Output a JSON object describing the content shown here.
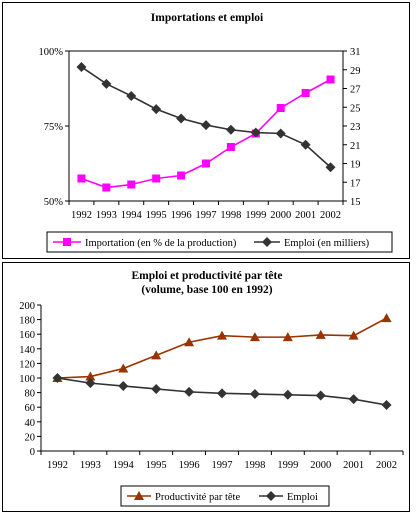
{
  "chart_data": [
    {
      "type": "line",
      "title": "Importations et emploi",
      "categories": [
        "1992",
        "1993",
        "1994",
        "1995",
        "1996",
        "1997",
        "1998",
        "1999",
        "2000",
        "2001",
        "2002"
      ],
      "y_left": {
        "ticks": [
          "50%",
          "75%",
          "100%"
        ],
        "range": [
          50,
          100
        ],
        "unit": "%"
      },
      "y_right": {
        "ticks": [
          "15",
          "17",
          "19",
          "21",
          "23",
          "25",
          "27",
          "29",
          "31"
        ],
        "range": [
          15,
          31
        ]
      },
      "series": [
        {
          "name": "Importation (en % de la  production)",
          "axis": "left",
          "color": "#ff00ff",
          "marker": "square",
          "values": [
            57.5,
            54.5,
            55.5,
            57.5,
            58.5,
            62.5,
            68,
            72.5,
            81,
            86,
            90.5
          ]
        },
        {
          "name": "Emploi (en milliers)",
          "axis": "right",
          "color": "#333333",
          "marker": "diamond",
          "values": [
            29.3,
            27.5,
            26.2,
            24.8,
            23.8,
            23.1,
            22.6,
            22.3,
            22.2,
            21.0,
            18.6
          ]
        }
      ],
      "legend": "bottom"
    },
    {
      "type": "line",
      "title": "Emploi et productivité par tête",
      "subtitle": "(volume, base 100 en 1992)",
      "categories": [
        "1992",
        "1993",
        "1994",
        "1995",
        "1996",
        "1997",
        "1998",
        "1999",
        "2000",
        "2001",
        "2002"
      ],
      "y": {
        "ticks": [
          "0",
          "20",
          "40",
          "60",
          "80",
          "100",
          "120",
          "140",
          "160",
          "180",
          "200"
        ],
        "range": [
          0,
          200
        ]
      },
      "series": [
        {
          "name": "Productivité par tête",
          "color": "#993300",
          "marker": "triangle",
          "values": [
            100,
            102,
            113,
            131,
            149,
            158,
            156,
            156,
            159,
            158,
            182
          ]
        },
        {
          "name": "Emploi",
          "color": "#333333",
          "marker": "diamond",
          "values": [
            100,
            93,
            89,
            85,
            81,
            79,
            78,
            77,
            76,
            71,
            63
          ]
        }
      ],
      "legend": "bottom"
    }
  ]
}
